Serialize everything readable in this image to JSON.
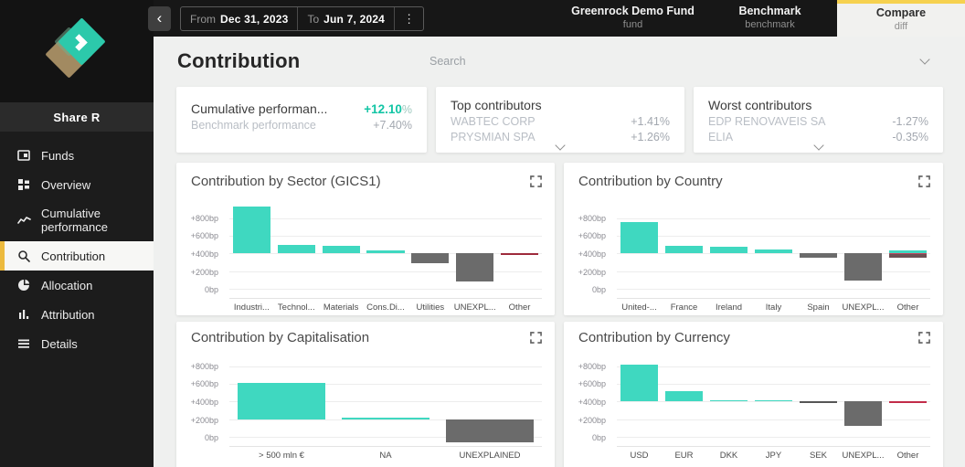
{
  "topbar": {
    "back_icon": "‹",
    "kebab_icon": "⋮",
    "from_label": "From",
    "from_value": "Dec 31, 2023",
    "to_label": "To",
    "to_value": "Jun 7, 2024",
    "fund": {
      "title": "Greenrock Demo Fund",
      "subtitle": "fund"
    },
    "benchmark": {
      "title": "Benchmark",
      "subtitle": "benchmark"
    },
    "compare": {
      "title": "Compare",
      "subtitle": "diff"
    }
  },
  "sidebar": {
    "share_label": "Share R",
    "items": [
      {
        "label": "Funds"
      },
      {
        "label": "Overview"
      },
      {
        "label": "Cumulative performance"
      },
      {
        "label": "Contribution",
        "active": true
      },
      {
        "label": "Allocation"
      },
      {
        "label": "Attribution"
      },
      {
        "label": "Details"
      }
    ]
  },
  "main": {
    "title": "Contribution",
    "search": {
      "placeholder": "Search"
    },
    "summary_cards": [
      {
        "rows": [
          {
            "label": "Cumulative performan...",
            "value": "+12.10",
            "suffix": "%"
          },
          {
            "label": "Benchmark performance",
            "value": "+7.40%"
          }
        ]
      },
      {
        "title": "Top contributors",
        "rows": [
          {
            "label": "WABTEC CORP",
            "value": "+1.41%"
          },
          {
            "label": "PRYSMIAN SPA",
            "value": "+1.26%"
          }
        ]
      },
      {
        "title": "Worst contributors",
        "rows": [
          {
            "label": "EDP RENOVAVEIS SA",
            "value": "-1.27%"
          },
          {
            "label": "ELIA",
            "value": "-0.35%"
          }
        ]
      }
    ]
  },
  "colors": {
    "accent_teal": "#3fd8c0",
    "accent_yellow": "#f6d14f",
    "positive_text": "#12c5a5",
    "bar_gray": "#6b6b6b",
    "bar_red": "#9e2b3c"
  },
  "chart_data": [
    {
      "type": "bar",
      "title": "Contribution by Sector (GICS1)",
      "unit": "bp",
      "ylim": [
        -100,
        950
      ],
      "grid": true,
      "baseline": 400,
      "yticks": [
        {
          "label": "+800bp",
          "v": 800
        },
        {
          "label": "+600bp",
          "v": 600
        },
        {
          "label": "+400bp",
          "v": 400
        },
        {
          "label": "+200bp",
          "v": 200
        },
        {
          "label": "0bp",
          "v": 0
        }
      ],
      "bars": [
        {
          "category": "Industri...",
          "segments": [
            {
              "from": 400,
              "to": 930,
              "color": "#3fd8c0"
            }
          ]
        },
        {
          "category": "Technol...",
          "segments": [
            {
              "from": 400,
              "to": 492,
              "color": "#3fd8c0"
            }
          ]
        },
        {
          "category": "Materials",
          "segments": [
            {
              "from": 400,
              "to": 483,
              "color": "#3fd8c0"
            }
          ]
        },
        {
          "category": "Cons.Di...",
          "segments": [
            {
              "from": 400,
              "to": 432,
              "color": "#3fd8c0"
            }
          ]
        },
        {
          "category": "Utilities",
          "segments": [
            {
              "from": 292,
              "to": 400,
              "color": "#6b6b6b"
            }
          ]
        },
        {
          "category": "UNEXPL...",
          "segments": [
            {
              "from": 88,
              "to": 400,
              "color": "#6b6b6b"
            }
          ]
        },
        {
          "category": "Other",
          "segments": [
            {
              "from": 388,
              "to": 408,
              "color": "#9e2b3c"
            }
          ]
        }
      ]
    },
    {
      "type": "bar",
      "title": "Contribution by Country",
      "unit": "bp",
      "ylim": [
        -100,
        950
      ],
      "grid": true,
      "baseline": 400,
      "yticks": [
        {
          "label": "+800bp",
          "v": 800
        },
        {
          "label": "+600bp",
          "v": 600
        },
        {
          "label": "+400bp",
          "v": 400
        },
        {
          "label": "+200bp",
          "v": 200
        },
        {
          "label": "0bp",
          "v": 0
        }
      ],
      "bars": [
        {
          "category": "United-...",
          "segments": [
            {
              "from": 400,
              "to": 758,
              "color": "#3fd8c0"
            }
          ]
        },
        {
          "category": "France",
          "segments": [
            {
              "from": 400,
              "to": 487,
              "color": "#3fd8c0"
            }
          ]
        },
        {
          "category": "Ireland",
          "segments": [
            {
              "from": 400,
              "to": 478,
              "color": "#3fd8c0"
            }
          ]
        },
        {
          "category": "Italy",
          "segments": [
            {
              "from": 400,
              "to": 442,
              "color": "#3fd8c0"
            }
          ]
        },
        {
          "category": "Spain",
          "segments": [
            {
              "from": 356,
              "to": 400,
              "color": "#6b6b6b"
            }
          ]
        },
        {
          "category": "UNEXPL...",
          "segments": [
            {
              "from": 96,
              "to": 400,
              "color": "#6b6b6b"
            }
          ]
        },
        {
          "category": "Other",
          "segments": [
            {
              "from": 403,
              "to": 440,
              "color": "#3fd8c0"
            },
            {
              "from": 396,
              "to": 403,
              "color": "#c64560"
            },
            {
              "from": 358,
              "to": 396,
              "color": "#6d5154"
            }
          ]
        }
      ]
    },
    {
      "type": "bar",
      "title": "Contribution by Capitalisation",
      "unit": "bp",
      "ylim": [
        -100,
        950
      ],
      "grid": true,
      "baseline": 200,
      "yticks": [
        {
          "label": "+800bp",
          "v": 800
        },
        {
          "label": "+600bp",
          "v": 600
        },
        {
          "label": "+400bp",
          "v": 400
        },
        {
          "label": "+200bp",
          "v": 200
        },
        {
          "label": "0bp",
          "v": 0
        }
      ],
      "bars": [
        {
          "category": "> 500 mln €",
          "segments": [
            {
              "from": 200,
              "to": 610,
              "color": "#3fd8c0"
            }
          ]
        },
        {
          "category": "NA",
          "segments": [
            {
              "from": 200,
              "to": 214,
              "color": "#3fd8c0"
            }
          ]
        },
        {
          "category": "UNEXPLAINED",
          "segments": [
            {
              "from": -62,
              "to": 200,
              "color": "#6b6b6b"
            }
          ]
        }
      ]
    },
    {
      "type": "bar",
      "title": "Contribution by Currency",
      "unit": "bp",
      "ylim": [
        -100,
        950
      ],
      "grid": true,
      "baseline": 400,
      "yticks": [
        {
          "label": "+800bp",
          "v": 800
        },
        {
          "label": "+600bp",
          "v": 600
        },
        {
          "label": "+400bp",
          "v": 400
        },
        {
          "label": "+200bp",
          "v": 200
        },
        {
          "label": "0bp",
          "v": 0
        }
      ],
      "bars": [
        {
          "category": "USD",
          "segments": [
            {
              "from": 400,
              "to": 818,
              "color": "#3fd8c0"
            }
          ]
        },
        {
          "category": "EUR",
          "segments": [
            {
              "from": 400,
              "to": 522,
              "color": "#3fd8c0"
            }
          ]
        },
        {
          "category": "DKK",
          "segments": [
            {
              "from": 400,
              "to": 412,
              "color": "#3fd8c0"
            }
          ]
        },
        {
          "category": "JPY",
          "segments": [
            {
              "from": 400,
              "to": 412,
              "color": "#3fd8c0"
            }
          ]
        },
        {
          "category": "SEK",
          "segments": [
            {
              "from": 386,
              "to": 400,
              "color": "#565656"
            }
          ]
        },
        {
          "category": "UNEXPL...",
          "segments": [
            {
              "from": 128,
              "to": 400,
              "color": "#6b6b6b"
            }
          ]
        },
        {
          "category": "Other",
          "segments": [
            {
              "from": 388,
              "to": 408,
              "color": "#c22c49"
            }
          ]
        }
      ]
    }
  ]
}
